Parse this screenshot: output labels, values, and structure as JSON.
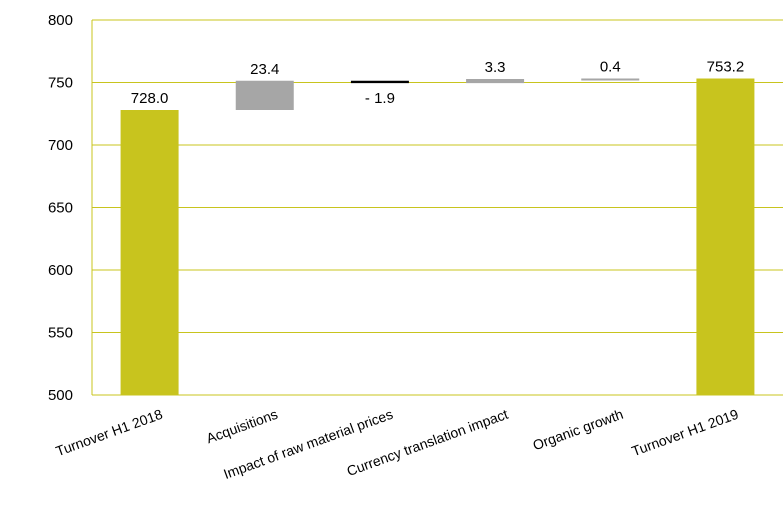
{
  "chart_data": {
    "type": "waterfall",
    "categories": [
      "Turnover H1 2018",
      "Acquisitions",
      "Impact of raw material prices",
      "Currency translation impact",
      "Organic growth",
      "Turnover H1 2019"
    ],
    "values": [
      728.0,
      23.4,
      -1.9,
      3.3,
      0.4,
      753.2
    ],
    "kinds": [
      "total",
      "delta",
      "delta",
      "delta",
      "delta",
      "total"
    ],
    "data_labels": [
      "728.0",
      "23.4",
      "- 1.9",
      "3.3",
      "0.4",
      "753.2"
    ],
    "ylim": [
      500,
      800
    ],
    "yticks": [
      500,
      550,
      600,
      650,
      700,
      750,
      800
    ],
    "grid": true,
    "colors": {
      "total": "#c8c41e",
      "increase": "#a6a6a6",
      "decrease": "#000000",
      "grid": "#c8c41e"
    }
  }
}
